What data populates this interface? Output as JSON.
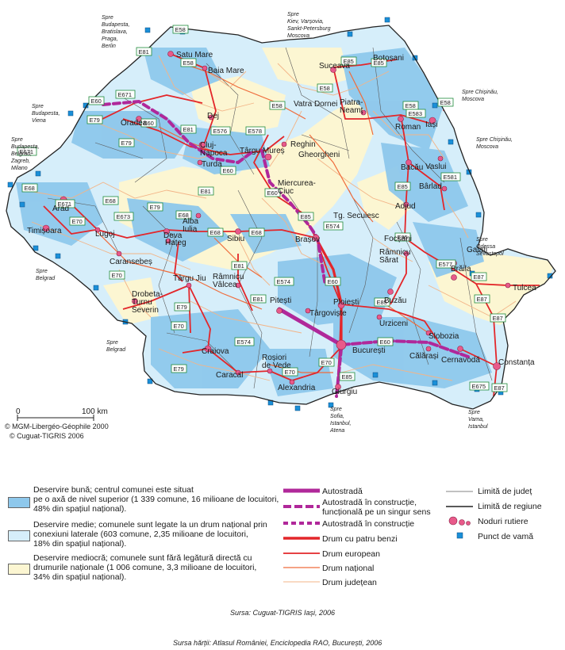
{
  "colors": {
    "good": "#8ec8ec",
    "medium": "#d6eefa",
    "poor": "#fcf6d2",
    "autostrada": "#b0289a",
    "drum4": "#e3262a",
    "european": "#e3262a",
    "national": "#ef6c3c",
    "judetean": "#f3b487",
    "node": "#e85a8a",
    "customs": "#1a8fd8",
    "eroute_border": "#1e8a3a"
  },
  "cities": [
    {
      "name": "Satu Mare"
    },
    {
      "name": "Baia Mare"
    },
    {
      "name": "Oradea"
    },
    {
      "name": "Dej"
    },
    {
      "name": "Cluj-\nNapoca"
    },
    {
      "name": "Turda"
    },
    {
      "name": "Reghin"
    },
    {
      "name": "Târgu Mureș"
    },
    {
      "name": "Suceava"
    },
    {
      "name": "Botoșani"
    },
    {
      "name": "Vatra Dornei"
    },
    {
      "name": "Piatra-\nNeamț"
    },
    {
      "name": "Roman"
    },
    {
      "name": "Iași"
    },
    {
      "name": "Bacău"
    },
    {
      "name": "Vaslui"
    },
    {
      "name": "Gheorgheni"
    },
    {
      "name": "Miercurea-\nCiuc"
    },
    {
      "name": "Bârlad"
    },
    {
      "name": "Adjud"
    },
    {
      "name": "Arad"
    },
    {
      "name": "Timișoara"
    },
    {
      "name": "Lugoj"
    },
    {
      "name": "Deva"
    },
    {
      "name": "Alba\nIulia"
    },
    {
      "name": "Sibiu"
    },
    {
      "name": "Hațeg"
    },
    {
      "name": "Caransebeș"
    },
    {
      "name": "Brașov"
    },
    {
      "name": "Tg. Secuiesc"
    },
    {
      "name": "Focșani"
    },
    {
      "name": "Râmnicu\nSărat"
    },
    {
      "name": "Galați"
    },
    {
      "name": "Brăila"
    },
    {
      "name": "Tulcea"
    },
    {
      "name": "Buzău"
    },
    {
      "name": "Târgu Jiu"
    },
    {
      "name": "Râmnicu\nVâlcea"
    },
    {
      "name": "Pitești"
    },
    {
      "name": "Târgoviște"
    },
    {
      "name": "Ploiești"
    },
    {
      "name": "Urziceni"
    },
    {
      "name": "Slobozia"
    },
    {
      "name": "Drobeta-\nTurnu\nSeverin"
    },
    {
      "name": "Craiova"
    },
    {
      "name": "Caracal"
    },
    {
      "name": "Roșiori\nde Vede"
    },
    {
      "name": "Alexandria"
    },
    {
      "name": "București"
    },
    {
      "name": "Giurgiu"
    },
    {
      "name": "Călărași"
    },
    {
      "name": "Cernavodă"
    },
    {
      "name": "Constanța"
    }
  ],
  "spre_labels": [
    {
      "text": "Spre\nBudapesta,\nBratislava,\nPraga,\nBerlin"
    },
    {
      "text": "Spre\nKiev, Varșovia,\nSankt-Petersburg\nMoscova"
    },
    {
      "text": "Spre\nBudapesta,\nViena"
    },
    {
      "text": "Spre\nBudapesta,\nBelgrad,\nZagreb,\nMilano"
    },
    {
      "text": "Spre Chișinău,\nMoscova"
    },
    {
      "text": "Spre Chișinău,\nMoscova"
    },
    {
      "text": "Spre\nOdessa\nSevastopol"
    },
    {
      "text": "Spre\nBelgrad"
    },
    {
      "text": "Spre\nBelgrad"
    },
    {
      "text": "Spre\nSofia,\nIstanbul,\nAtena"
    },
    {
      "text": "Spre\nVama,\nIstanbul"
    }
  ],
  "e_routes": [
    "E58",
    "E81",
    "E58",
    "E671",
    "E60",
    "E79",
    "E60",
    "E81",
    "E576",
    "E578",
    "E58",
    "E85",
    "E58",
    "E85",
    "E58",
    "E583",
    "E58",
    "E85",
    "E581",
    "E85",
    "E671",
    "E79",
    "E68",
    "E671",
    "E68",
    "E673",
    "E70",
    "E79",
    "E68",
    "E81",
    "E68",
    "E68",
    "E60",
    "E60",
    "E574",
    "E85",
    "E577",
    "E87",
    "E87",
    "E70",
    "E81",
    "E574",
    "E81",
    "E60",
    "E85",
    "E87",
    "E70",
    "E79",
    "E574",
    "E70",
    "E70",
    "E85",
    "E60",
    "E675",
    "E87",
    "E79"
  ],
  "scale": {
    "zero": "0",
    "km": "100 km"
  },
  "credits": {
    "line1": "© MGM-Libergéo-Géophile 2000",
    "line2": "© Cuguat-TIGRIS 2006"
  },
  "legend": {
    "areas": [
      {
        "lines": [
          "Deservire bună; centrul comunei este situat",
          "pe o axă de nivel superior (1 339 comune, 16 milioane de locuitori,",
          "48% din spațiul național)."
        ]
      },
      {
        "lines": [
          "Deservire medie; comunele sunt legate la un drum național prin",
          "conexiuni laterale (603 comune, 2,35 milioane de locuitori,",
          "18% din spațiul național)."
        ]
      },
      {
        "lines": [
          "Deservire mediocră; comunele sunt fără legătură directă cu",
          "drumurile naționale (1 006 comune, 3,3 milioane de locuitori,",
          "34% din spațiul național)."
        ]
      }
    ],
    "roads": [
      {
        "label": "Autostradă"
      },
      {
        "label": "Autostradă în construcție,\nfuncțională pe un singur sens"
      },
      {
        "label": "Autostradă în construcție"
      },
      {
        "label": "Drum cu patru benzi"
      },
      {
        "label": "Drum european"
      },
      {
        "label": "Drum național"
      },
      {
        "label": "Drum județean"
      }
    ],
    "boundaries": [
      {
        "label": "Limită de județ"
      },
      {
        "label": "Limită de regiune"
      },
      {
        "label": "Noduri rutiere"
      },
      {
        "label": "Punct de vamă"
      }
    ]
  },
  "source": "Sursa: Cuguat-TIGRIS Iași, 2006",
  "source_maps": "Sursa hărții:  Atlasul României, Enciclopedia RAO, București, 2006"
}
